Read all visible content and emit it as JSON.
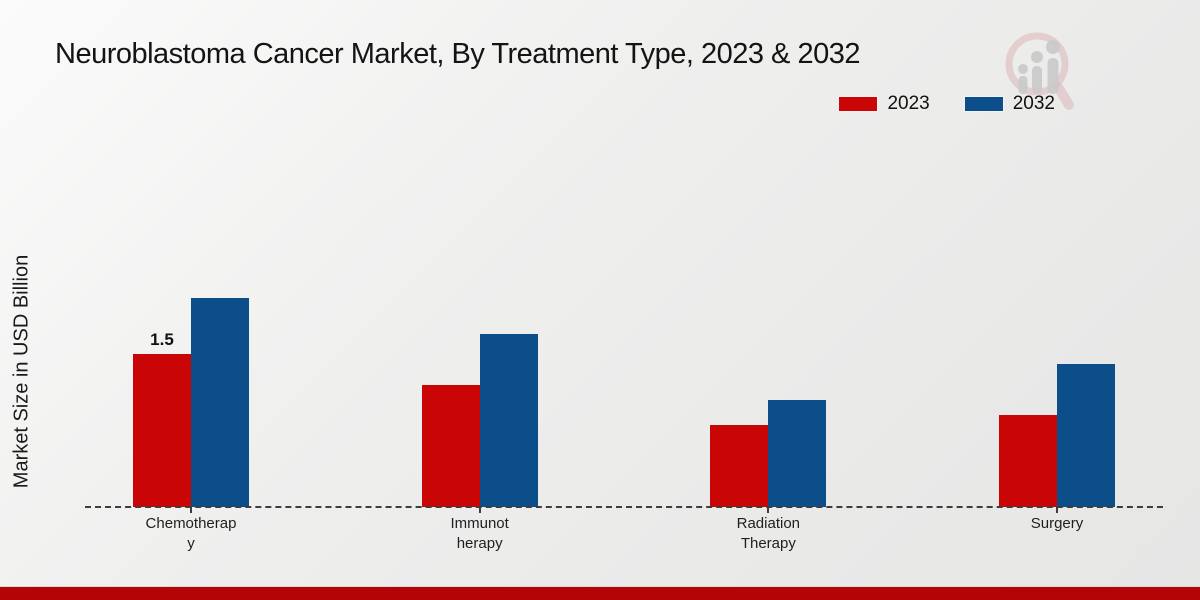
{
  "page": {
    "title": "Neuroblastoma Cancer Market, By Treatment Type, 2023 & 2032"
  },
  "legend": {
    "items": [
      {
        "label": "2023",
        "color": "#c90605"
      },
      {
        "label": "2032",
        "color": "#0c4e8a"
      }
    ]
  },
  "logo": {
    "name": "magnifier-bar-chart-logo",
    "ring_color": "#d8aeae",
    "bar_color": "#c7c7c7"
  },
  "chart_data": {
    "type": "bar",
    "title": "Neuroblastoma Cancer Market, By Treatment Type, 2023 & 2032",
    "xlabel": "",
    "ylabel": "Market Size in USD Billion",
    "unit": "USD Billion",
    "categories": [
      "Chemotherapy",
      "Immunotherapy",
      "Radiation Therapy",
      "Surgery"
    ],
    "tick_labels": [
      "Chemotherap\ny",
      "Immunot\nherapy",
      "Radiation\nTherapy",
      "Surgery"
    ],
    "series": [
      {
        "name": "2023",
        "color": "#c90605",
        "values": [
          1.5,
          1.2,
          0.8,
          0.9
        ]
      },
      {
        "name": "2032",
        "color": "#0c4e8a",
        "values": [
          2.05,
          1.7,
          1.05,
          1.4
        ]
      }
    ],
    "bar_labels": [
      {
        "series_index": 0,
        "category_index": 0,
        "text": "1.5"
      }
    ],
    "ylim": [
      0,
      2.5
    ],
    "grid": false,
    "legend_position": "top-right",
    "baseline_style": "dashed"
  },
  "footer": {
    "bar_color": "#b30505"
  }
}
